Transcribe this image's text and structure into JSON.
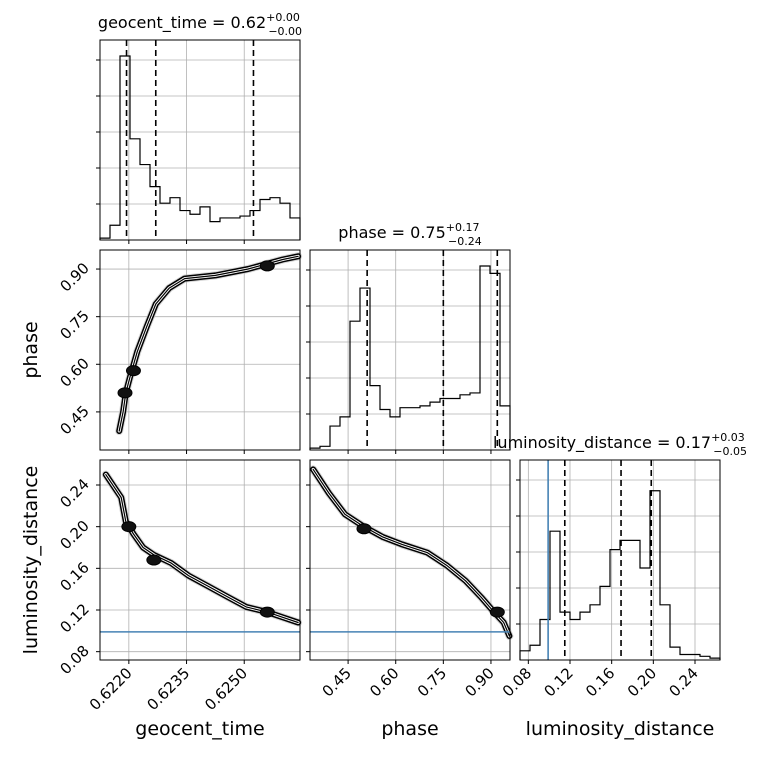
{
  "chart_data": {
    "type": "corner",
    "parameters": [
      "geocent_time",
      "phase",
      "luminosity_distance"
    ],
    "axis_labels": {
      "geocent_time": "geocent_time",
      "phase": "phase",
      "luminosity_distance": "luminosity_distance"
    },
    "ranges": {
      "geocent_time": [
        0.62125,
        0.62645
      ],
      "phase": [
        0.33,
        0.96
      ],
      "luminosity_distance": [
        0.072,
        0.264
      ]
    },
    "ticks": {
      "geocent_time": [
        {
          "v": 0.622,
          "label": "0.6220"
        },
        {
          "v": 0.6235,
          "label": "0.6235"
        },
        {
          "v": 0.625,
          "label": "0.6250"
        }
      ],
      "phase": [
        {
          "v": 0.45,
          "label": "0.45"
        },
        {
          "v": 0.6,
          "label": "0.60"
        },
        {
          "v": 0.75,
          "label": "0.75"
        },
        {
          "v": 0.9,
          "label": "0.90"
        }
      ],
      "luminosity_distance": [
        {
          "v": 0.08,
          "label": "0.08"
        },
        {
          "v": 0.12,
          "label": "0.12"
        },
        {
          "v": 0.16,
          "label": "0.16"
        },
        {
          "v": 0.2,
          "label": "0.20"
        },
        {
          "v": 0.24,
          "label": "0.24"
        }
      ]
    },
    "titles": [
      {
        "param": "geocent_time",
        "name": "geocent_time = 0.62",
        "sup": "+0.00",
        "sub": "−0.00"
      },
      {
        "param": "phase",
        "name": "phase = 0.75",
        "sup": "+0.17",
        "sub": "−0.24"
      },
      {
        "param": "luminosity_distance",
        "name": "luminosity_distance = 0.17",
        "sup": "+0.03",
        "sub": "−0.05"
      }
    ],
    "quantiles": {
      "geocent_time": [
        0.62194,
        0.6227,
        0.62524
      ],
      "phase": [
        0.51,
        0.75,
        0.92
      ],
      "luminosity_distance": [
        0.115,
        0.169,
        0.198
      ]
    },
    "truths": {
      "luminosity_distance": 0.099
    },
    "histograms": {
      "geocent_time": {
        "edges": [
          0.62125,
          0.62151,
          0.62177,
          0.62203,
          0.62229,
          0.62255,
          0.62281,
          0.62307,
          0.62333,
          0.62359,
          0.62385,
          0.62411,
          0.62437,
          0.62463,
          0.62489,
          0.62515,
          0.62541,
          0.62567,
          0.62593,
          0.62619,
          0.62645
        ],
        "counts": [
          0.01,
          0.08,
          1.0,
          0.55,
          0.41,
          0.29,
          0.2,
          0.23,
          0.16,
          0.14,
          0.18,
          0.1,
          0.12,
          0.12,
          0.13,
          0.16,
          0.22,
          0.23,
          0.2,
          0.12
        ]
      },
      "phase": {
        "edges": [
          0.33,
          0.3615,
          0.393,
          0.4245,
          0.456,
          0.4875,
          0.519,
          0.5505,
          0.582,
          0.6135,
          0.645,
          0.6765,
          0.708,
          0.7395,
          0.771,
          0.8025,
          0.834,
          0.8655,
          0.897,
          0.9285,
          0.96
        ],
        "counts": [
          0.01,
          0.02,
          0.13,
          0.18,
          0.7,
          0.88,
          0.35,
          0.22,
          0.18,
          0.23,
          0.23,
          0.24,
          0.26,
          0.28,
          0.28,
          0.3,
          0.31,
          1.0,
          0.96,
          0.24
        ]
      },
      "luminosity_distance": {
        "edges": [
          0.072,
          0.0816,
          0.0912,
          0.1008,
          0.1104,
          0.12,
          0.1296,
          0.1392,
          0.1488,
          0.1584,
          0.168,
          0.1776,
          0.1872,
          0.1968,
          0.2064,
          0.216,
          0.2256,
          0.2352,
          0.2448,
          0.2544,
          0.264
        ],
        "counts": [
          0.05,
          0.08,
          0.22,
          0.7,
          0.26,
          0.22,
          0.26,
          0.3,
          0.4,
          0.6,
          0.65,
          0.65,
          0.5,
          0.92,
          0.3,
          0.07,
          0.03,
          0.03,
          0.02,
          0.01
        ]
      }
    },
    "contours": {
      "phase_vs_geocent_time": {
        "x": "geocent_time",
        "y": "phase",
        "path": [
          [
            0.62175,
            0.39
          ],
          [
            0.62185,
            0.45
          ],
          [
            0.62192,
            0.51
          ],
          [
            0.62203,
            0.56
          ],
          [
            0.62222,
            0.64
          ],
          [
            0.62247,
            0.72
          ],
          [
            0.6227,
            0.79
          ],
          [
            0.62305,
            0.84
          ],
          [
            0.62345,
            0.87
          ],
          [
            0.62425,
            0.88
          ],
          [
            0.6251,
            0.9
          ],
          [
            0.626,
            0.93
          ],
          [
            0.6264,
            0.94
          ]
        ],
        "cores": [
          [
            0.6219,
            0.51
          ],
          [
            0.62212,
            0.58
          ],
          [
            0.6256,
            0.91
          ]
        ]
      },
      "luminosity_distance_vs_geocent_time": {
        "x": "geocent_time",
        "y": "luminosity_distance",
        "path": [
          [
            0.6214,
            0.25
          ],
          [
            0.6218,
            0.228
          ],
          [
            0.62192,
            0.205
          ],
          [
            0.62212,
            0.193
          ],
          [
            0.62237,
            0.18
          ],
          [
            0.62265,
            0.173
          ],
          [
            0.6231,
            0.165
          ],
          [
            0.62355,
            0.153
          ],
          [
            0.62405,
            0.143
          ],
          [
            0.62455,
            0.133
          ],
          [
            0.62505,
            0.123
          ],
          [
            0.6256,
            0.118
          ],
          [
            0.626,
            0.113
          ],
          [
            0.6264,
            0.108
          ]
        ],
        "cores": [
          [
            0.622,
            0.2
          ],
          [
            0.62265,
            0.168
          ],
          [
            0.6256,
            0.118
          ]
        ]
      },
      "luminosity_distance_vs_phase": {
        "x": "phase",
        "y": "luminosity_distance",
        "path": [
          [
            0.34,
            0.255
          ],
          [
            0.39,
            0.232
          ],
          [
            0.44,
            0.212
          ],
          [
            0.5,
            0.2
          ],
          [
            0.56,
            0.19
          ],
          [
            0.62,
            0.183
          ],
          [
            0.7,
            0.175
          ],
          [
            0.76,
            0.163
          ],
          [
            0.82,
            0.148
          ],
          [
            0.87,
            0.132
          ],
          [
            0.91,
            0.118
          ],
          [
            0.94,
            0.108
          ],
          [
            0.958,
            0.095
          ]
        ],
        "cores": [
          [
            0.5,
            0.198
          ],
          [
            0.92,
            0.118
          ]
        ]
      }
    }
  }
}
